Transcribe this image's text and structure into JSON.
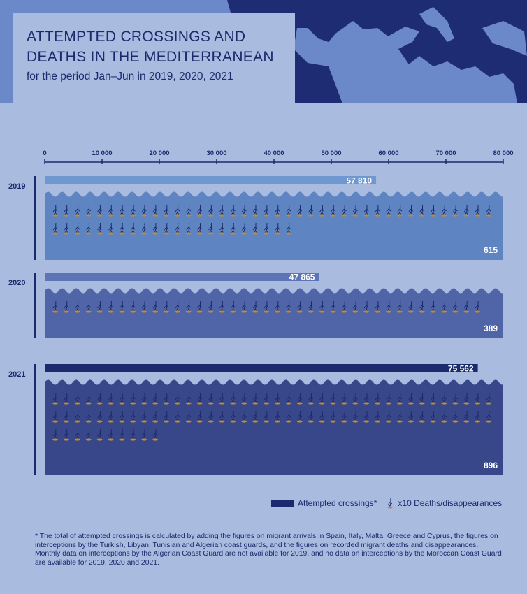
{
  "header": {
    "title": "ATTEMPTED CROSSINGS AND\nDEATHS IN THE MEDITERRANEAN",
    "subtitle": "for the period Jan–Jun in 2019, 2020, 2021"
  },
  "chart_data": {
    "type": "bar",
    "title": "ATTEMPTED CROSSINGS AND DEATHS IN THE MEDITERRANEAN",
    "subtitle": "for the period Jan–Jun in 2019, 2020, 2021",
    "xlim": [
      0,
      80000
    ],
    "x_ticks": [
      "0",
      "10 000",
      "20 000",
      "30 000",
      "40 000",
      "50 000",
      "60 000",
      "70 000",
      "80 000"
    ],
    "x_tick_values": [
      0,
      10000,
      20000,
      30000,
      40000,
      50000,
      60000,
      70000,
      80000
    ],
    "categories": [
      "2019",
      "2020",
      "2021"
    ],
    "series": [
      {
        "name": "Attempted crossings*",
        "values": [
          57810,
          47865,
          75562
        ],
        "labels": [
          "57 810",
          "47 865",
          "75 562"
        ]
      },
      {
        "name": "x10 Deaths/disappearances",
        "values": [
          615,
          389,
          896
        ],
        "labels": [
          "615",
          "389",
          "896"
        ],
        "unit_per_icon": 10
      }
    ],
    "legend_position": "bottom-right",
    "colors": {
      "background": "#a9bbdf",
      "bars": [
        "#6f97d0",
        "#5d75b7",
        "#1a2a6c"
      ],
      "sea": [
        "#5e84c2",
        "#5065a8",
        "#37478a"
      ],
      "figure_accent": "#c08a3a"
    }
  },
  "legend": {
    "crossings_label": "Attempted crossings*",
    "deaths_label": "x10 Deaths/disappearances"
  },
  "footnote": "* The total of attempted crossings is calculated by adding the figures on migrant arrivals in Spain, Italy, Malta, Greece and Cyprus, the figures on interceptions by the Turkish, Libyan, Tunisian and Algerian coast guards, and the figures on recorded migrant deaths and disappearances. Monthly data on interceptions by the Algerian Coast Guard are not available for 2019, and no data on interceptions by the Moroccan Coast Guard are available for 2019, 2020 and 2021."
}
